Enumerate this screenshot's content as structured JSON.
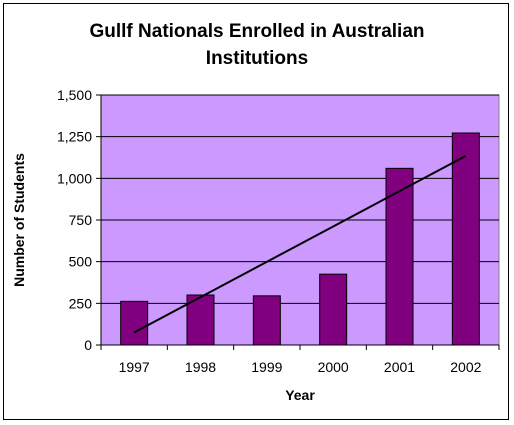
{
  "chart_data": {
    "type": "bar",
    "title_line1": "Gullf Nationals Enrolled in Australian",
    "title_line2": "Institutions",
    "xlabel": "Year",
    "ylabel": "Number of Students",
    "categories": [
      "1997",
      "1998",
      "1999",
      "2000",
      "2001",
      "2002"
    ],
    "values": [
      262,
      300,
      295,
      425,
      1060,
      1272
    ],
    "ylim": [
      0,
      1500
    ],
    "yticks": [
      0,
      250,
      500,
      750,
      1000,
      1250,
      1500
    ],
    "ytick_labels": [
      "0",
      "250",
      "500",
      "750",
      "1,000",
      "1,250",
      "1,500"
    ],
    "trendline": {
      "type": "linear",
      "start": 75,
      "end": 1135
    },
    "grid": true,
    "colors": {
      "plot_bg": "#cc99ff",
      "bar": "#800080",
      "trend": "#000000",
      "grid": "#000000"
    }
  }
}
